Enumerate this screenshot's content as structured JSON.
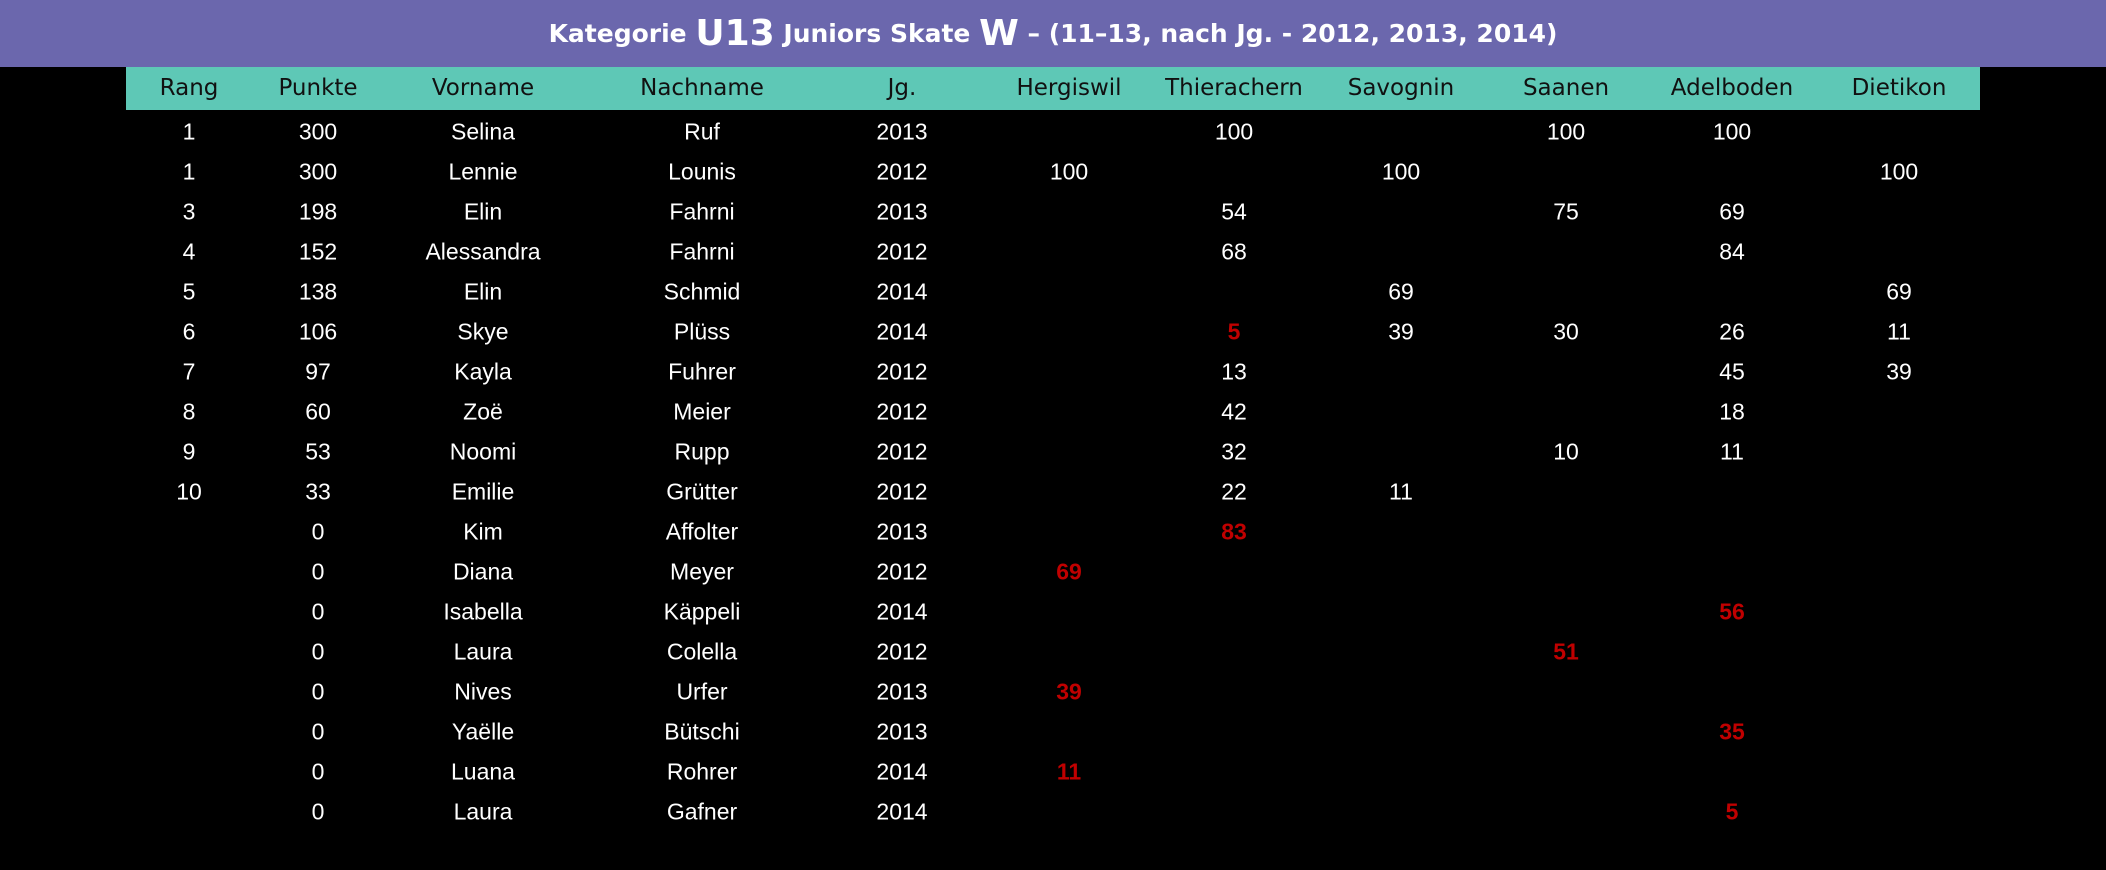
{
  "title": {
    "parts": [
      "Kategorie ",
      "U13",
      " Juniors Skate ",
      "W",
      " – (11–13, nach Jg. - 2012, 2013, 2014)"
    ]
  },
  "table": {
    "header": [
      "Rang",
      "Punkte",
      "Vorname",
      "Nachname",
      "Jg.",
      "Hergiswil",
      "Thierachern",
      "Savognin",
      "Saanen",
      "Adelboden",
      "Dietikon"
    ],
    "rows": [
      [
        1,
        300,
        "Selina",
        "Ruf",
        2013,
        null,
        100,
        null,
        100,
        100,
        null
      ],
      [
        1,
        300,
        "Lennie",
        "Lounis",
        2012,
        100,
        null,
        100,
        null,
        null,
        100
      ],
      [
        3,
        198,
        "Elin",
        "Fahrni",
        2013,
        null,
        54,
        null,
        75,
        69,
        null
      ],
      [
        4,
        152,
        "Alessandra",
        "Fahrni",
        2012,
        null,
        68,
        null,
        null,
        84,
        null
      ],
      [
        5,
        138,
        "Elin",
        "Schmid",
        2014,
        null,
        null,
        69,
        null,
        null,
        69
      ],
      [
        6,
        106,
        "Skye",
        "Plüss",
        2014,
        null,
        {
          "value": 5,
          "color": "#c00000"
        },
        39,
        30,
        26,
        11
      ],
      [
        7,
        97,
        "Kayla",
        "Fuhrer",
        2012,
        null,
        13,
        null,
        null,
        45,
        39
      ],
      [
        8,
        60,
        "Zoë",
        "Meier",
        2012,
        null,
        42,
        null,
        null,
        18,
        null
      ],
      [
        9,
        53,
        "Noomi",
        "Rupp",
        2012,
        null,
        32,
        null,
        10,
        11,
        null
      ],
      [
        10,
        33,
        "Emilie",
        "Grütter",
        2012,
        null,
        22,
        11,
        null,
        null,
        null
      ],
      [
        null,
        0,
        "Kim",
        "Affolter",
        2013,
        null,
        {
          "value": 83,
          "color": "#c00000"
        },
        null,
        null,
        null,
        null
      ],
      [
        null,
        0,
        "Diana",
        "Meyer",
        2012,
        {
          "value": 69,
          "color": "#c00000"
        },
        null,
        null,
        null,
        null,
        null
      ],
      [
        null,
        0,
        "Isabella",
        "Käppeli",
        2014,
        null,
        null,
        null,
        null,
        {
          "value": 56,
          "color": "#c00000"
        },
        null
      ],
      [
        null,
        0,
        "Laura",
        "Colella",
        2012,
        null,
        null,
        null,
        {
          "value": 51,
          "color": "#c00000"
        },
        null,
        null
      ],
      [
        null,
        0,
        "Nives",
        "Urfer",
        2013,
        {
          "value": 39,
          "color": "#c00000"
        },
        null,
        null,
        null,
        null,
        null
      ],
      [
        null,
        0,
        "Yaëlle",
        "Bütschi",
        2013,
        null,
        null,
        null,
        null,
        {
          "value": 35,
          "color": "#c00000"
        },
        null
      ],
      [
        null,
        0,
        "Luana",
        "Rohrer",
        2014,
        {
          "value": 11,
          "color": "#c00000"
        },
        null,
        null,
        null,
        null,
        null
      ],
      [
        null,
        0,
        "Laura",
        "Gafner",
        2014,
        null,
        null,
        null,
        null,
        {
          "value": 5,
          "color": "#c00000"
        },
        null
      ]
    ]
  }
}
